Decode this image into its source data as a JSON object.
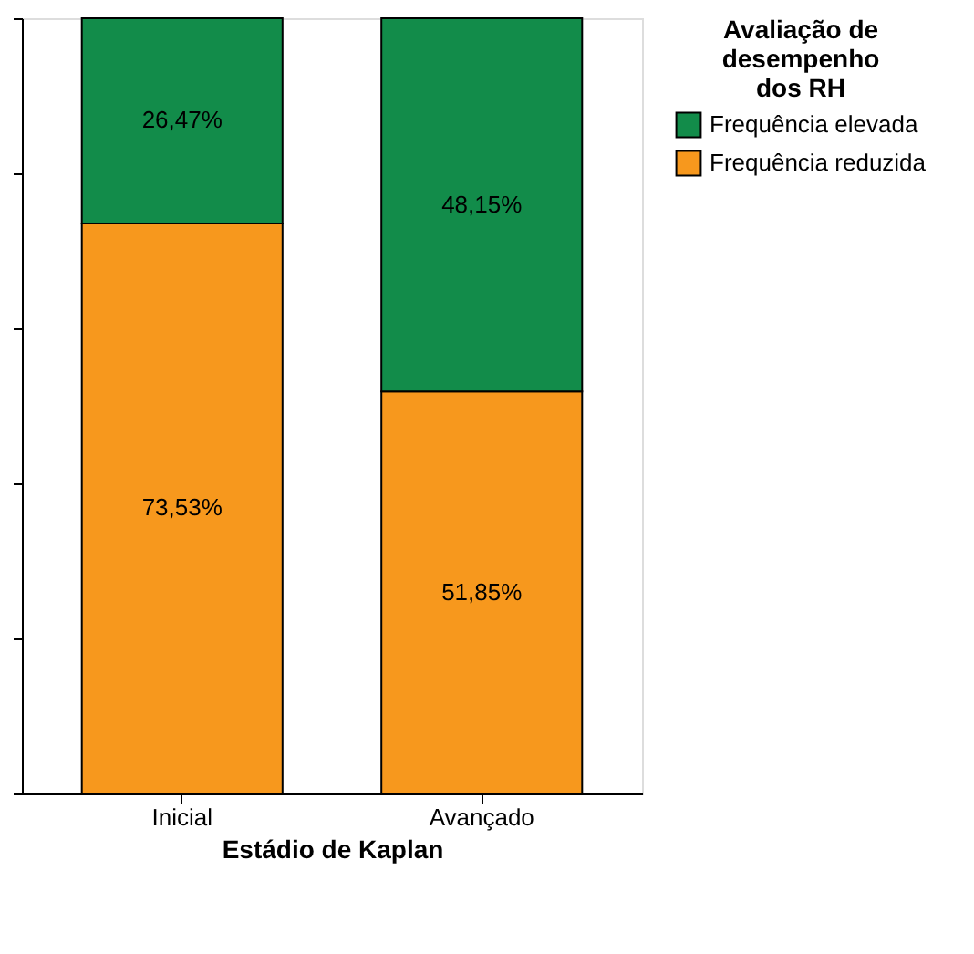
{
  "chart_data": {
    "type": "bar",
    "stacked": true,
    "xlabel": "Estádio de Kaplan",
    "legend_title": "Avaliação de desempenho dos RH",
    "legend": "top right",
    "grid": false,
    "categories": [
      "Inicial",
      "Avançado"
    ],
    "ylim": [
      0,
      100
    ],
    "yticks": [
      {
        "value": 0,
        "label": null
      },
      {
        "value": 20,
        "label": null
      },
      {
        "value": 40,
        "label": null
      },
      {
        "value": 60,
        "label": null
      },
      {
        "value": 80,
        "label": null
      },
      {
        "value": 100,
        "label": null
      }
    ],
    "series": [
      {
        "name": "Frequência reduzida",
        "color": "#f7981d",
        "values": [
          73.53,
          51.85
        ],
        "value_labels": [
          "73,53%",
          "51,85%"
        ]
      },
      {
        "name": "Frequência elevada",
        "color": "#128c4a",
        "values": [
          26.47,
          48.15
        ],
        "value_labels": [
          "26,47%",
          "48,15%"
        ]
      }
    ]
  }
}
